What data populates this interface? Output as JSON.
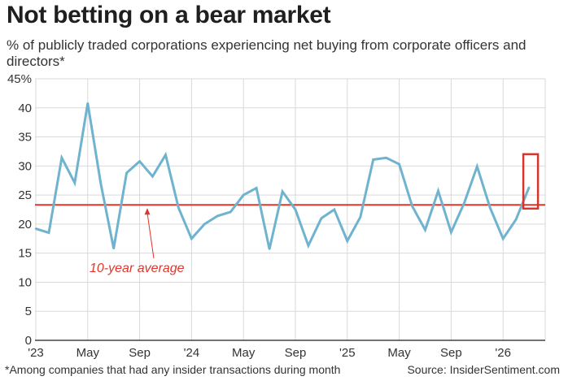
{
  "title": "Not betting on a bear market",
  "subtitle": "% of publicly traded corporations experiencing net buying from corporate officers and directors*",
  "footnote": "*Among companies that had any insider transactions during month",
  "source": "Source: InsiderSentiment.com",
  "colors": {
    "line": "#6fb3cf",
    "average": "#e0362c",
    "grid": "#d9d9d9",
    "highlight": "#d9342b"
  },
  "chart_data": {
    "type": "line",
    "ylim": [
      0,
      45
    ],
    "yticks": [
      "0",
      "5",
      "10",
      "15",
      "20",
      "25",
      "30",
      "35",
      "40",
      "45%"
    ],
    "ytick_values": [
      0,
      5,
      10,
      15,
      20,
      25,
      30,
      35,
      40,
      45
    ],
    "xtick_labels": [
      "'23",
      "May",
      "Sep",
      "'24",
      "May",
      "Sep",
      "'25",
      "May",
      "Sep",
      "'26"
    ],
    "xtick_months": [
      "2023-01",
      "2023-05",
      "2023-09",
      "2024-01",
      "2024-05",
      "2024-09",
      "2025-01",
      "2025-05",
      "2025-09",
      "2026-01"
    ],
    "x": [
      "2023-01",
      "2023-02",
      "2023-03",
      "2023-04",
      "2023-05",
      "2023-06",
      "2023-07",
      "2023-08",
      "2023-09",
      "2023-10",
      "2023-11",
      "2023-12",
      "2024-01",
      "2024-02",
      "2024-03",
      "2024-04",
      "2024-05",
      "2024-06",
      "2024-07",
      "2024-08",
      "2024-09",
      "2024-10",
      "2024-11",
      "2024-12",
      "2025-01",
      "2025-02",
      "2025-03",
      "2025-04",
      "2025-05",
      "2025-06",
      "2025-07",
      "2025-08",
      "2025-09",
      "2025-10",
      "2025-11",
      "2025-12",
      "2026-01",
      "2026-02",
      "2026-03"
    ],
    "series": [
      {
        "values": [
          19.2,
          18.5,
          31.4,
          27.1,
          40.8,
          27.0,
          15.8,
          28.8,
          30.8,
          28.2,
          31.9,
          22.8,
          17.5,
          20.0,
          21.4,
          22.1,
          25.0,
          26.2,
          15.7,
          25.6,
          22.5,
          16.3,
          21.0,
          22.5,
          17.1,
          21.2,
          31.1,
          31.4,
          30.3,
          23.1,
          19.0,
          25.7,
          18.6,
          23.6,
          29.9,
          22.8,
          17.5,
          20.8,
          26.3
        ]
      }
    ],
    "average": {
      "value": 23.3,
      "label": "10-year average"
    },
    "highlight_last_point": true
  }
}
